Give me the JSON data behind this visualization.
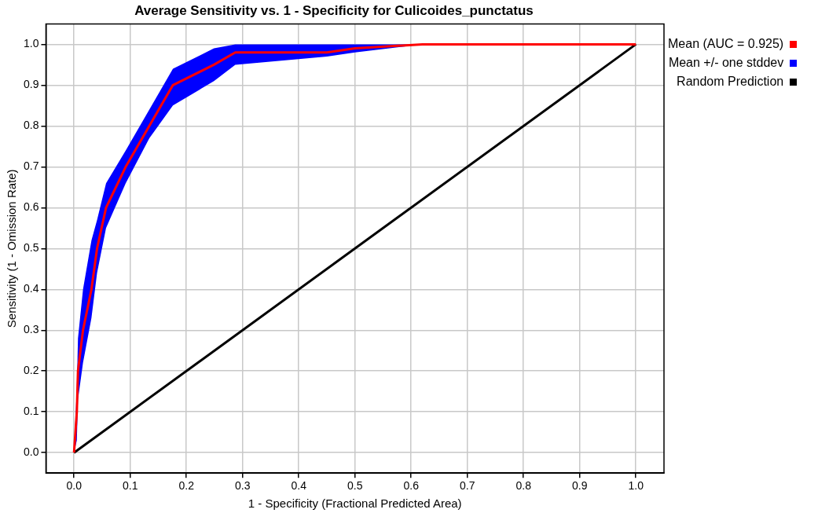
{
  "chart_data": {
    "type": "line",
    "title": "Average Sensitivity vs. 1 - Specificity for Culicoides_punctatus",
    "xlabel": "1 - Specificity (Fractional Predicted Area)",
    "ylabel": "Sensitivity (1 - Omission Rate)",
    "xlim": [
      -0.05,
      1.05
    ],
    "ylim": [
      -0.05,
      1.05
    ],
    "xticks": [
      {
        "value": 0,
        "label": "0.0"
      },
      0.1,
      0.2,
      0.3,
      0.4,
      0.5,
      0.6,
      0.7,
      0.8,
      0.9,
      {
        "value": 1,
        "label": "1.0"
      }
    ],
    "yticks": [
      {
        "value": 0,
        "label": "0.0"
      },
      0.1,
      0.2,
      0.3,
      0.4,
      0.5,
      0.6,
      0.7,
      0.8,
      0.9,
      {
        "value": 1,
        "label": "1.0"
      }
    ],
    "grid": true,
    "legend": "top right",
    "marker": "none",
    "line_style": "solid",
    "series": [
      {
        "name": "Mean (AUC = 0.925)",
        "color": "#ff0000",
        "x": [
          0,
          0.005,
          0.007,
          0.016,
          0.031,
          0.041,
          0.057,
          0.092,
          0.134,
          0.176,
          0.249,
          0.287,
          0.45,
          0.5,
          0.62,
          1
        ],
        "values": [
          0,
          0.1,
          0.2,
          0.3,
          0.4,
          0.5,
          0.6,
          0.7,
          0.8,
          0.9,
          0.95,
          0.98,
          0.98,
          0.99,
          1,
          1
        ]
      },
      {
        "name": "Mean +/- one stddev",
        "color": "#0000ff",
        "x": [
          0,
          0.005,
          0.007,
          0.016,
          0.031,
          0.041,
          0.057,
          0.092,
          0.134,
          0.176,
          0.249,
          0.287,
          0.45,
          0.5,
          0.62,
          1
        ],
        "values": [
          null,
          null,
          null,
          null,
          null,
          null,
          null,
          null,
          null,
          null,
          null,
          null,
          null,
          null,
          null,
          null
        ],
        "lower": [
          0,
          0.03,
          0.13,
          0.22,
          0.33,
          0.44,
          0.55,
          0.66,
          0.77,
          0.85,
          0.91,
          0.95,
          0.97,
          0.98,
          1,
          1
        ],
        "upper": [
          0,
          0.16,
          0.28,
          0.4,
          0.52,
          0.57,
          0.66,
          0.74,
          0.84,
          0.94,
          0.99,
          1,
          1,
          1,
          1,
          1
        ]
      },
      {
        "name": "Random Prediction",
        "color": "#000000",
        "x": [
          0,
          1
        ],
        "values": [
          0,
          1
        ]
      }
    ]
  }
}
